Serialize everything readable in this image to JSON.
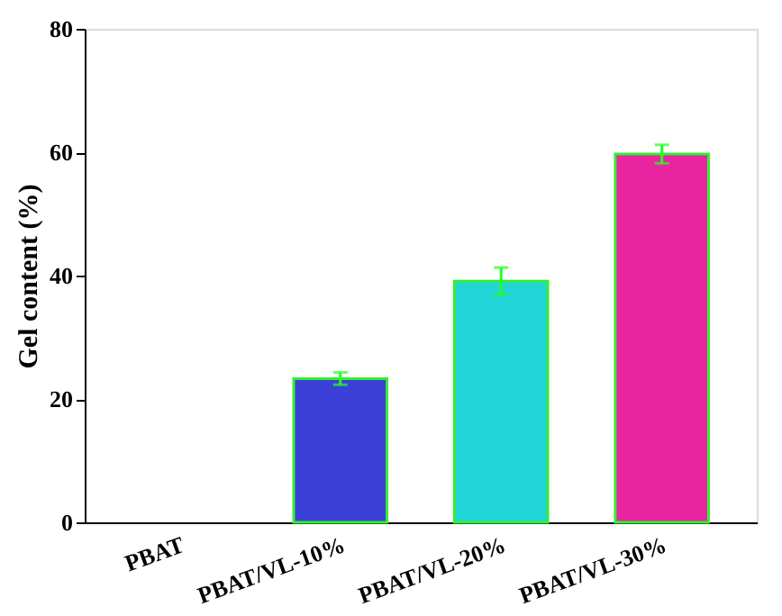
{
  "chart_data": {
    "type": "bar",
    "ylabel": "Gel content (%)",
    "categories": [
      "PBAT",
      "PBAT/VL-10%",
      "PBAT/VL-20%",
      "PBAT/VL-30%"
    ],
    "values": [
      null,
      23.3,
      39.1,
      59.7
    ],
    "errors": [
      null,
      1.0,
      2.2,
      1.5
    ],
    "colors": [
      "#3b3fd6",
      "#3b3fd6",
      "#22d6d8",
      "#e8259e"
    ],
    "ylim": [
      0,
      80
    ],
    "yticks": [
      0,
      20,
      40,
      60,
      80
    ],
    "grid": false
  }
}
